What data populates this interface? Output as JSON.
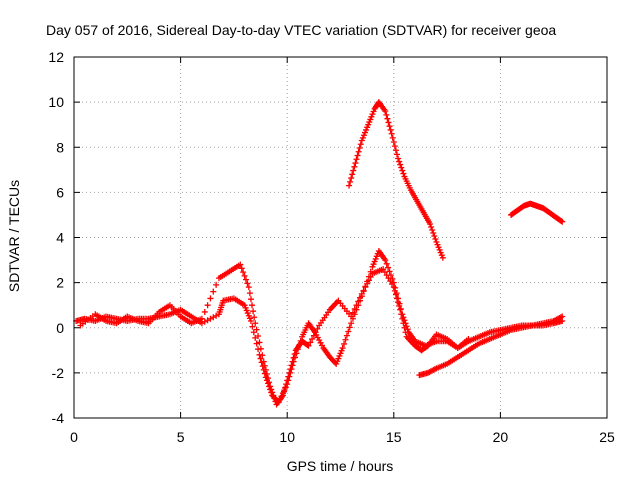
{
  "chart_data": {
    "type": "scatter",
    "title": "Day 057 of 2016, Sidereal Day-to-day VTEC variation (SDTVAR) for receiver geoa",
    "xlabel": "GPS time / hours",
    "ylabel": "SDTVAR / TECUs",
    "xlim": [
      0,
      25
    ],
    "ylim": [
      -4,
      12
    ],
    "xticks": [
      0,
      5,
      10,
      15,
      20,
      25
    ],
    "yticks": [
      -4,
      -2,
      0,
      2,
      4,
      6,
      8,
      10,
      12
    ],
    "grid": true,
    "marker": "plus",
    "color": "#ff0000",
    "series": [
      {
        "values": [
          [
            0.1,
            0.3
          ],
          [
            0.5,
            0.4
          ],
          [
            1.0,
            0.3
          ],
          [
            1.5,
            0.5
          ],
          [
            2.0,
            0.4
          ],
          [
            2.5,
            0.3
          ],
          [
            3.0,
            0.4
          ],
          [
            3.5,
            0.4
          ],
          [
            4.0,
            0.5
          ],
          [
            4.5,
            0.6
          ],
          [
            5.0,
            0.8
          ],
          [
            5.5,
            0.5
          ],
          [
            6.0,
            0.2
          ],
          [
            6.8,
            0.6
          ],
          [
            7.0,
            1.2
          ],
          [
            7.5,
            1.3
          ],
          [
            8.0,
            1.0
          ],
          [
            8.3,
            0.3
          ],
          [
            8.7,
            -1.2
          ],
          [
            9.0,
            -2.2
          ],
          [
            9.3,
            -3.0
          ],
          [
            9.6,
            -3.3
          ],
          [
            10.0,
            -2.5
          ],
          [
            10.3,
            -1.5
          ],
          [
            10.7,
            -0.4
          ],
          [
            11.0,
            0.2
          ],
          [
            11.3,
            -0.2
          ],
          [
            11.7,
            -0.9
          ],
          [
            12.0,
            -1.3
          ],
          [
            12.3,
            -1.6
          ],
          [
            12.6,
            -0.9
          ],
          [
            13.0,
            0.2
          ],
          [
            13.5,
            1.4
          ],
          [
            14.0,
            2.7
          ],
          [
            14.3,
            3.4
          ],
          [
            14.6,
            3.0
          ],
          [
            15.0,
            2.0
          ],
          [
            15.4,
            0.6
          ],
          [
            15.7,
            -0.2
          ],
          [
            16.0,
            -0.6
          ],
          [
            16.5,
            -0.8
          ],
          [
            17.0,
            -0.6
          ],
          [
            17.5,
            -0.6
          ],
          [
            18.0,
            -0.9
          ],
          [
            18.5,
            -0.6
          ],
          [
            19.0,
            -0.4
          ],
          [
            19.5,
            -0.2
          ],
          [
            20.0,
            -0.1
          ],
          [
            20.5,
            0.0
          ],
          [
            21.0,
            0.1
          ],
          [
            21.5,
            0.1
          ],
          [
            22.0,
            0.1
          ],
          [
            22.5,
            0.2
          ],
          [
            22.9,
            0.3
          ]
        ]
      },
      {
        "values": [
          [
            0.3,
            0.1
          ],
          [
            1.0,
            0.6
          ],
          [
            1.5,
            0.3
          ],
          [
            2.0,
            0.2
          ],
          [
            2.5,
            0.5
          ],
          [
            3.0,
            0.3
          ],
          [
            3.5,
            0.2
          ],
          [
            4.0,
            0.7
          ],
          [
            4.5,
            1.0
          ],
          [
            5.0,
            0.5
          ],
          [
            5.5,
            0.2
          ],
          [
            6.0,
            0.4
          ],
          [
            6.8,
            2.2
          ],
          [
            7.3,
            2.5
          ],
          [
            7.8,
            2.8
          ],
          [
            8.2,
            1.8
          ],
          [
            8.5,
            0.2
          ],
          [
            8.9,
            -1.5
          ],
          [
            9.2,
            -2.6
          ],
          [
            9.5,
            -3.4
          ],
          [
            9.8,
            -3.0
          ],
          [
            10.1,
            -2.0
          ],
          [
            10.4,
            -1.0
          ],
          [
            10.7,
            -0.6
          ],
          [
            11.0,
            -0.8
          ],
          [
            11.5,
            0.1
          ],
          [
            12.0,
            0.8
          ],
          [
            12.4,
            1.2
          ],
          [
            13.0,
            0.5
          ],
          [
            13.5,
            1.5
          ],
          [
            14.0,
            2.4
          ],
          [
            14.5,
            2.6
          ],
          [
            15.0,
            1.8
          ],
          [
            15.3,
            0.8
          ],
          [
            15.6,
            -0.4
          ],
          [
            16.0,
            -0.8
          ],
          [
            16.3,
            -1.0
          ],
          [
            16.6,
            -0.8
          ],
          [
            17.0,
            -0.3
          ],
          [
            17.5,
            -0.5
          ],
          [
            18.0,
            -0.9
          ],
          [
            18.5,
            -0.5
          ]
        ]
      },
      {
        "values": [
          [
            12.9,
            6.3
          ],
          [
            13.2,
            7.3
          ],
          [
            13.5,
            8.3
          ],
          [
            13.8,
            9.0
          ],
          [
            14.1,
            9.7
          ],
          [
            14.3,
            10.0
          ],
          [
            14.6,
            9.6
          ],
          [
            14.9,
            8.6
          ],
          [
            15.2,
            7.5
          ],
          [
            15.5,
            6.7
          ],
          [
            15.8,
            6.1
          ],
          [
            16.1,
            5.6
          ],
          [
            16.4,
            5.1
          ],
          [
            16.7,
            4.6
          ],
          [
            17.0,
            3.8
          ],
          [
            17.3,
            3.1
          ]
        ]
      },
      {
        "values": [
          [
            20.5,
            5.0
          ],
          [
            20.8,
            5.2
          ],
          [
            21.1,
            5.4
          ],
          [
            21.4,
            5.5
          ],
          [
            21.7,
            5.4
          ],
          [
            22.0,
            5.3
          ],
          [
            22.3,
            5.1
          ],
          [
            22.6,
            4.9
          ],
          [
            22.9,
            4.7
          ]
        ]
      },
      {
        "values": [
          [
            16.2,
            -2.1
          ],
          [
            16.6,
            -2.0
          ],
          [
            17.0,
            -1.8
          ],
          [
            17.5,
            -1.6
          ],
          [
            18.0,
            -1.3
          ],
          [
            18.5,
            -1.0
          ],
          [
            19.0,
            -0.7
          ],
          [
            19.5,
            -0.5
          ],
          [
            20.0,
            -0.3
          ],
          [
            20.5,
            -0.1
          ],
          [
            21.0,
            0.0
          ],
          [
            21.5,
            0.1
          ],
          [
            22.0,
            0.2
          ],
          [
            22.5,
            0.3
          ],
          [
            22.9,
            0.5
          ]
        ]
      }
    ]
  }
}
